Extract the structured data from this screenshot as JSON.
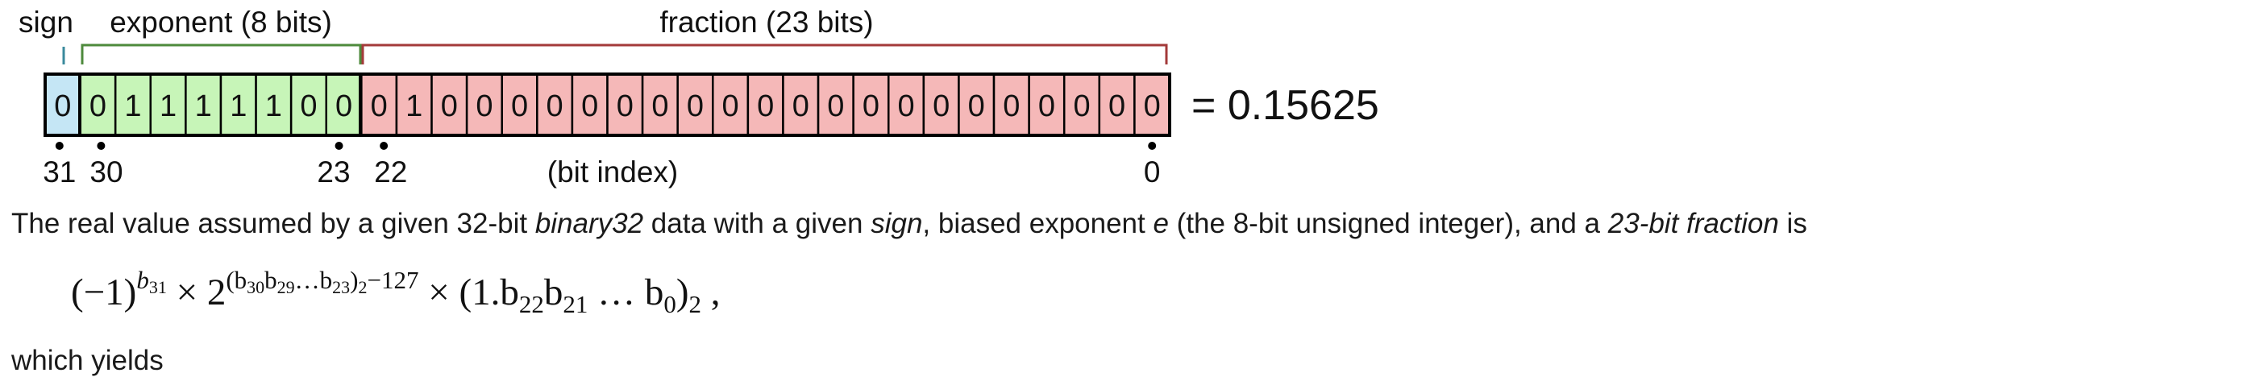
{
  "labels": {
    "sign": "sign",
    "exponent": "exponent (8 bits)",
    "fraction": "fraction (23 bits)",
    "bit_index": "(bit index)",
    "result": "= 0.15625"
  },
  "bits": [
    "0",
    "0",
    "1",
    "1",
    "1",
    "1",
    "1",
    "0",
    "0",
    "0",
    "1",
    "0",
    "0",
    "0",
    "0",
    "0",
    "0",
    "0",
    "0",
    "0",
    "0",
    "0",
    "0",
    "0",
    "0",
    "0",
    "0",
    "0",
    "0",
    "0",
    "0",
    "0"
  ],
  "index_labels": [
    {
      "bit": 31,
      "text": "31"
    },
    {
      "bit": 30,
      "text": "30"
    },
    {
      "bit": 23,
      "text": "23"
    },
    {
      "bit": 22,
      "text": "22"
    },
    {
      "bit": 0,
      "text": "0"
    }
  ],
  "colors": {
    "sign_fill": "#c5e6f5",
    "sign_bracket": "#3a8a9c",
    "exponent_fill": "#c7f5b8",
    "exponent_bracket": "#4e8a3c",
    "fraction_fill": "#f5b8b8",
    "fraction_bracket": "#a33a3a"
  },
  "description": {
    "t1": "The real value assumed by a given 32-bit ",
    "i1": "binary32",
    "t2": " data with a given ",
    "i2": "sign",
    "t3": ", biased exponent ",
    "i3": "e",
    "t4": " (the 8-bit unsigned integer), and a ",
    "i4": "23-bit fraction",
    "t5": " is"
  },
  "formula": {
    "f1": "(−1)",
    "e1": "b",
    "e1s": "31",
    "f2": " × 2",
    "e2": "(b",
    "e2s1": "30",
    "e2b": "b",
    "e2s2": "29",
    "e2c": "…b",
    "e2s3": "23",
    "e2d": ")",
    "e2s4": "2",
    "e2e": "−127",
    "f3": " × (1.b",
    "s3a": "22",
    "f4": "b",
    "s3b": "21",
    "f5": " … b",
    "s3c": "0",
    "f6": ")",
    "s3d": "2",
    "f7": " ,"
  },
  "cutoff_text": "which yields"
}
